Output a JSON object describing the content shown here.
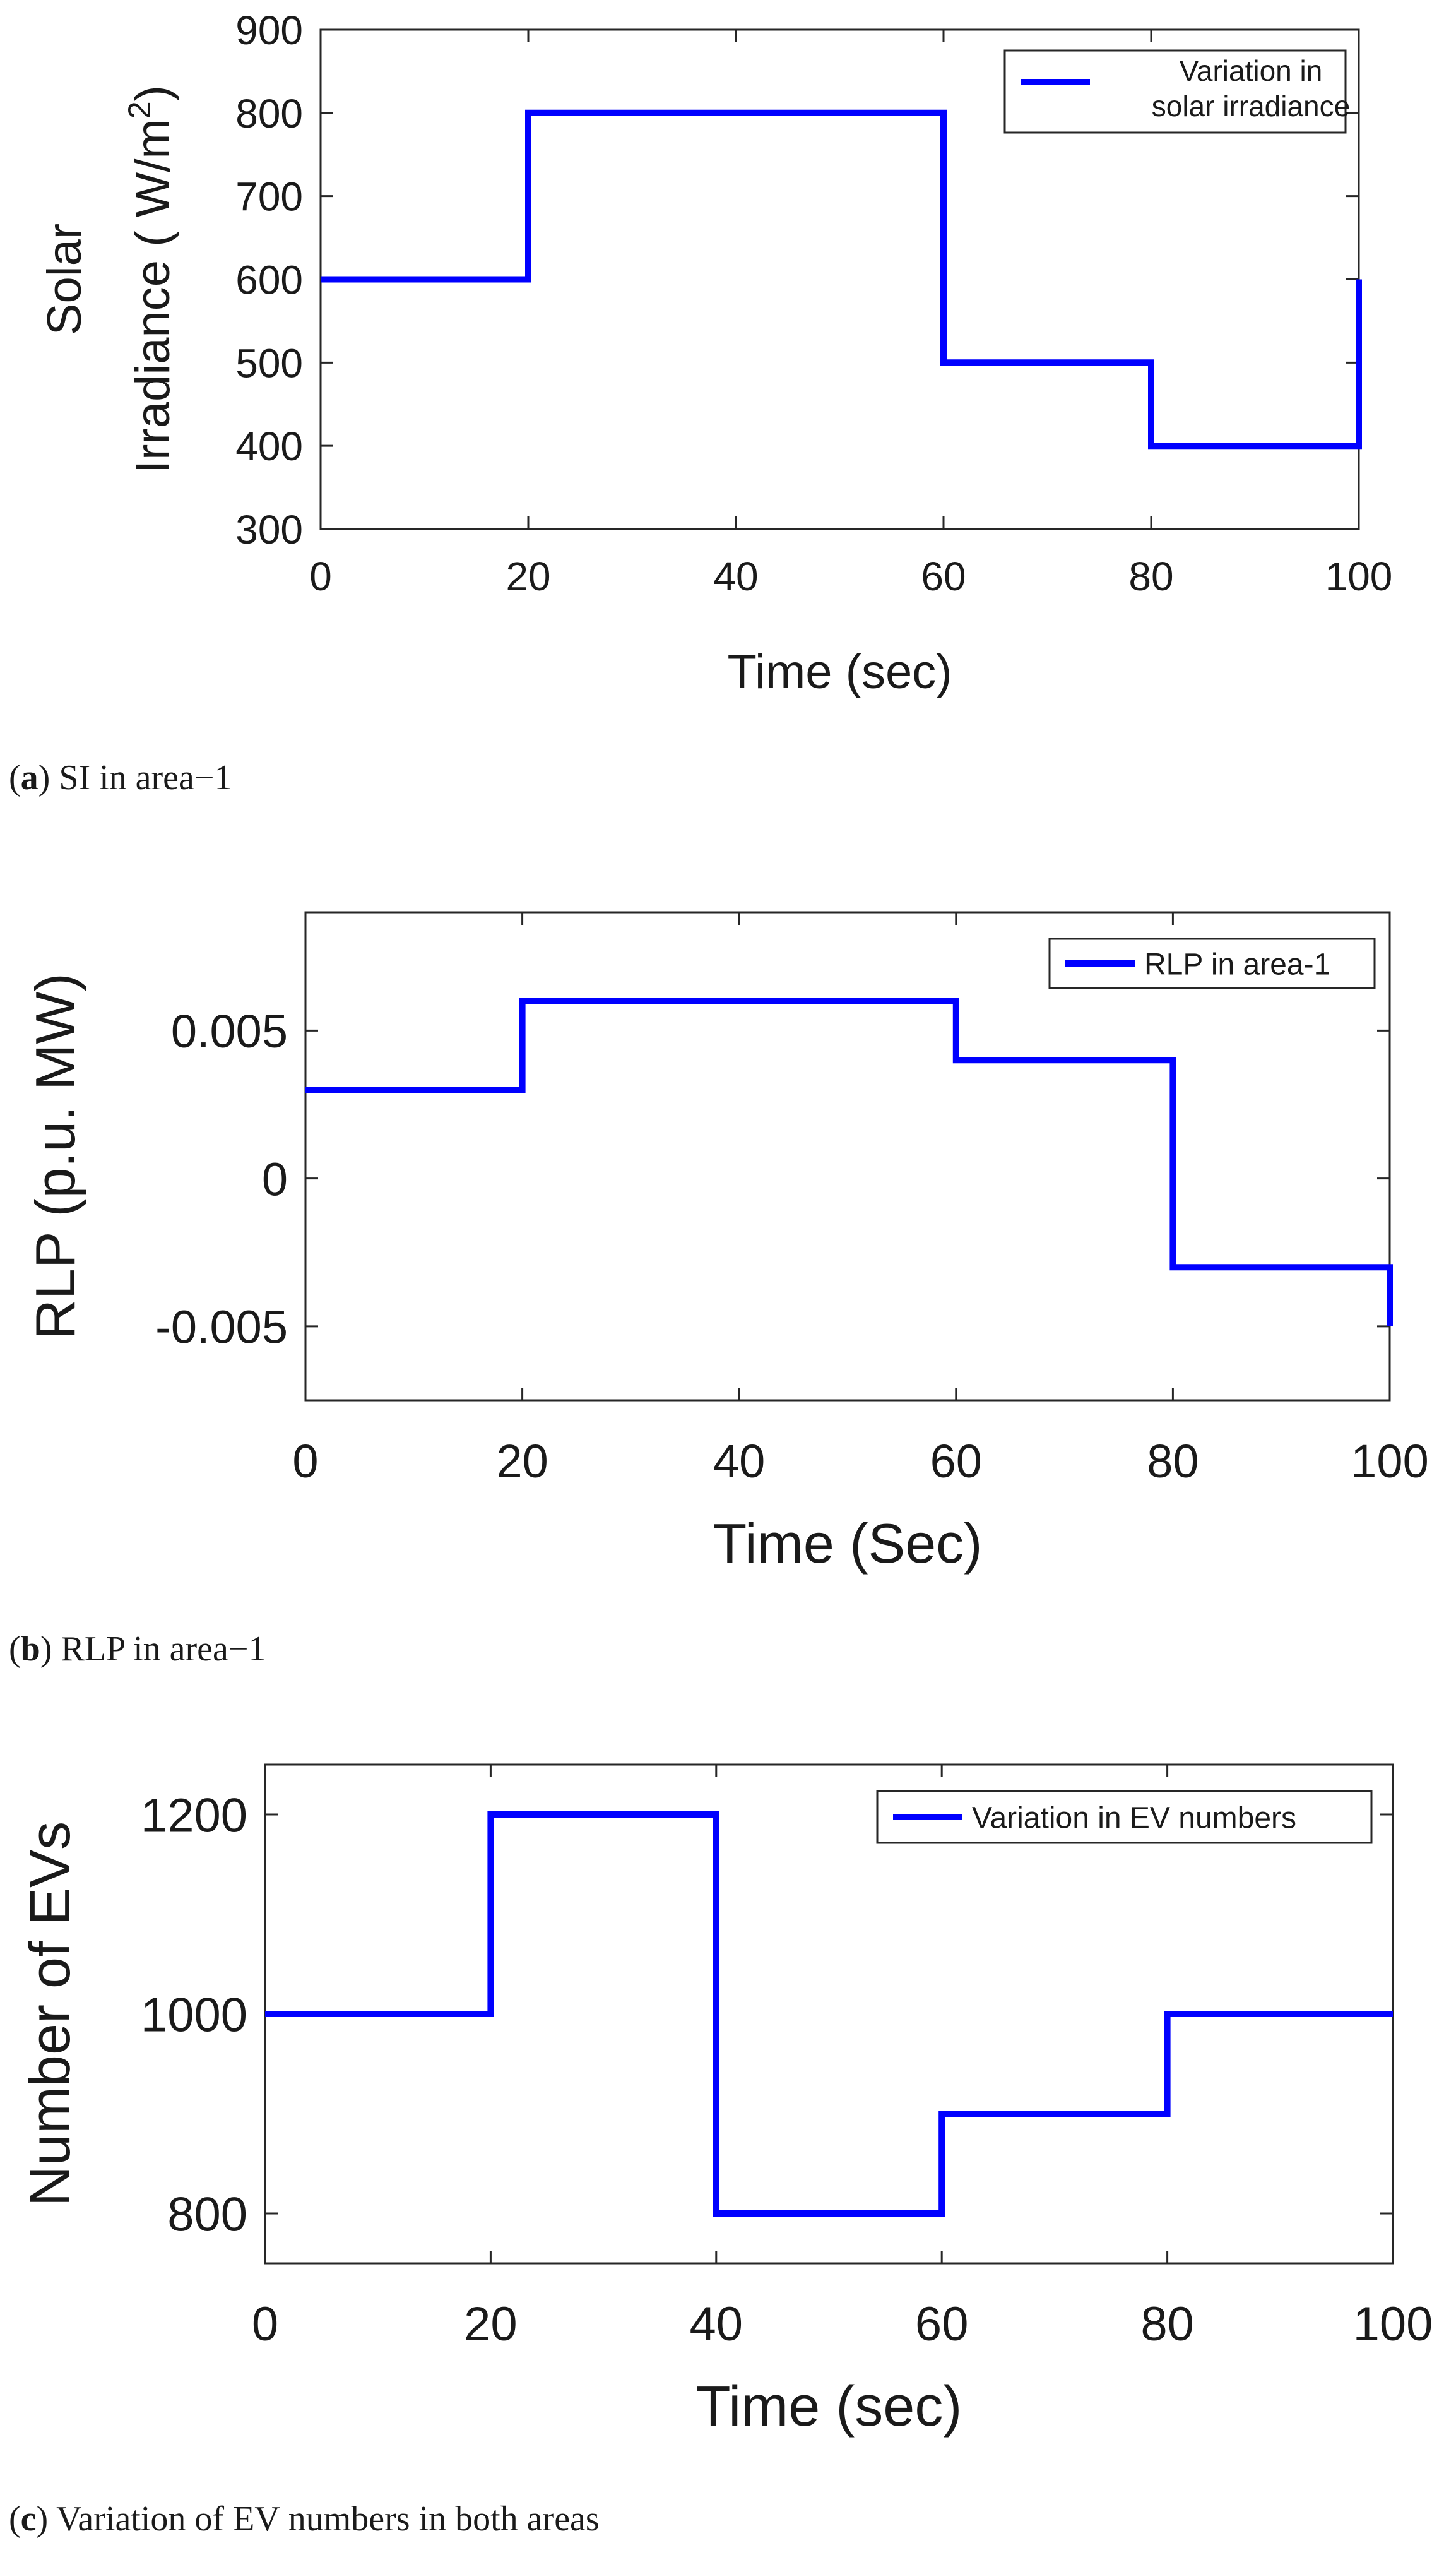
{
  "chart_data": [
    {
      "type": "line",
      "title": "",
      "xlabel": "Time (sec)",
      "ylabel": [
        "Solar",
        "Irradiance ( W/m",
        "2",
        ")"
      ],
      "xlim": [
        0,
        100
      ],
      "ylim": [
        300,
        900
      ],
      "xticks": [
        0,
        20,
        40,
        60,
        80,
        100
      ],
      "yticks": [
        300,
        400,
        500,
        600,
        700,
        800,
        900
      ],
      "grid": false,
      "legend_position": "top-right",
      "legend_lines": [
        "Variation in",
        "solar irradiance"
      ],
      "series": [
        {
          "name": "Variation in solar irradiance",
          "color": "#0000ff",
          "x": [
            0,
            20,
            20,
            60,
            60,
            80,
            80,
            100,
            100
          ],
          "y": [
            600,
            600,
            800,
            800,
            500,
            500,
            400,
            400,
            600
          ]
        }
      ],
      "caption_letter": "a",
      "caption_text": "SI in area−1"
    },
    {
      "type": "line",
      "title": "",
      "xlabel": "Time (Sec)",
      "ylabel": [
        "RLP (p.u. MW)"
      ],
      "xlim": [
        0,
        100
      ],
      "ylim": [
        -0.0075,
        0.009
      ],
      "xticks": [
        0,
        20,
        40,
        60,
        80,
        100
      ],
      "yticks": [
        -0.005,
        0,
        0.005
      ],
      "ytick_labels": [
        "-0.005",
        "0",
        "0.005"
      ],
      "grid": false,
      "legend_position": "top-right",
      "legend_lines": [
        "RLP in area-1"
      ],
      "series": [
        {
          "name": "RLP in area-1",
          "color": "#0000ff",
          "x": [
            0,
            20,
            20,
            60,
            60,
            80,
            80,
            100,
            100
          ],
          "y": [
            0.003,
            0.003,
            0.006,
            0.006,
            0.004,
            0.004,
            -0.003,
            -0.003,
            -0.005
          ]
        }
      ],
      "caption_letter": "b",
      "caption_text": "RLP in area−1"
    },
    {
      "type": "line",
      "title": "",
      "xlabel": "Time (sec)",
      "ylabel": [
        "Number of EVs"
      ],
      "xlim": [
        0,
        100
      ],
      "ylim": [
        750,
        1250
      ],
      "xticks": [
        0,
        20,
        40,
        60,
        80,
        100
      ],
      "yticks": [
        800,
        1000,
        1200
      ],
      "grid": false,
      "legend_position": "top-right",
      "legend_lines": [
        "Variation in EV numbers"
      ],
      "series": [
        {
          "name": "Variation in EV numbers",
          "color": "#0000ff",
          "x": [
            0,
            20,
            20,
            40,
            40,
            60,
            60,
            80,
            80,
            100
          ],
          "y": [
            1000,
            1000,
            1200,
            1200,
            800,
            800,
            900,
            900,
            1000,
            1000
          ]
        }
      ],
      "caption_letter": "c",
      "caption_text": "Variation of EV numbers in both areas"
    }
  ]
}
